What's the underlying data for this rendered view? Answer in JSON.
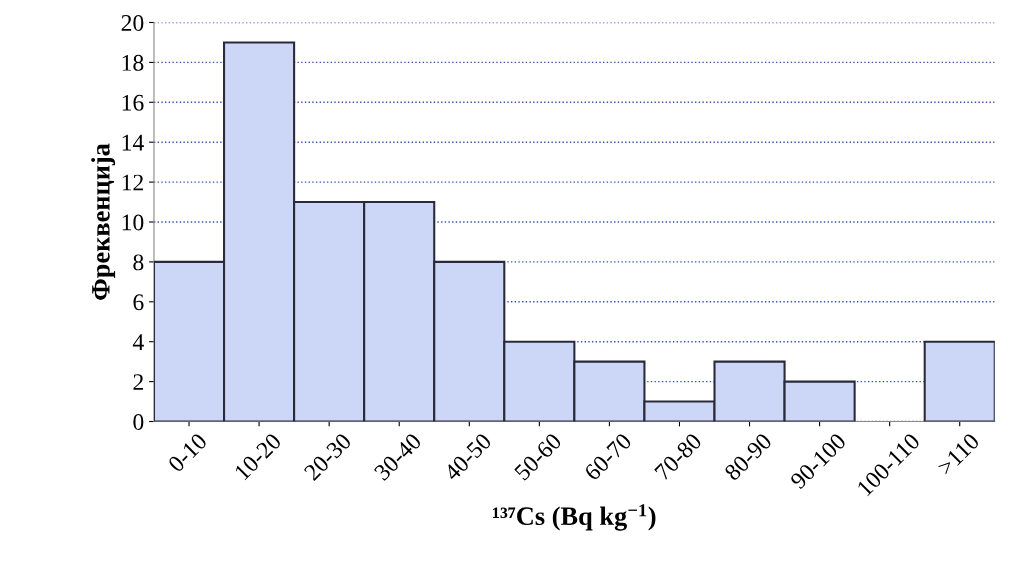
{
  "chart_data": {
    "type": "bar",
    "xlabel": "¹³⁷Cs (Bq kg$^{−1}$)",
    "ylabel": "Фреквенција",
    "categories": [
      "0-10",
      "10-20",
      "20-30",
      "30-40",
      "40-50",
      "50-60",
      "60-70",
      "70-80",
      "80-90",
      "90-100",
      "100-110",
      ">110"
    ],
    "values": [
      8,
      19,
      11,
      11,
      8,
      4,
      3,
      1,
      3,
      2,
      0,
      4
    ],
    "color": "#ccd6f6",
    "ylim": [
      0,
      20
    ],
    "yticks": [
      0,
      2,
      4,
      6,
      8,
      10,
      12,
      14,
      16,
      18,
      20
    ],
    "grid": "y"
  }
}
